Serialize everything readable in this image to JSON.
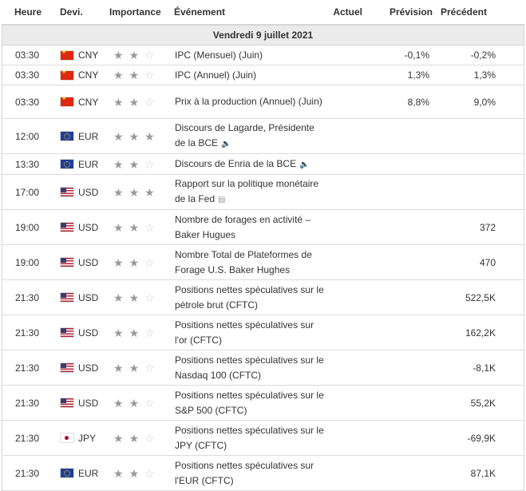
{
  "headers": {
    "time": "Heure",
    "currency": "Devi.",
    "importance": "Importance",
    "event": "Événement",
    "actual": "Actuel",
    "forecast": "Prévision",
    "previous": "Précédent"
  },
  "date_label": "Vendredi 9 juillet 2021",
  "icons": {
    "speaker": "🔈",
    "report": "▤"
  },
  "colors": {
    "header_bg": "#ebebeb",
    "star_on": "#999999",
    "star_off": "#cfcfcf"
  },
  "events": [
    {
      "time": "03:30",
      "flag": "cn",
      "currency": "CNY",
      "stars": 2,
      "event": "IPC (Mensuel) (Juin)",
      "icon": "",
      "actual": "",
      "forecast": "-0,1%",
      "previous": "-0,2%"
    },
    {
      "time": "03:30",
      "flag": "cn",
      "currency": "CNY",
      "stars": 2,
      "event": "IPC (Annuel) (Juin)",
      "icon": "",
      "actual": "",
      "forecast": "1,3%",
      "previous": "1,3%"
    },
    {
      "time": "03:30",
      "flag": "cn",
      "currency": "CNY",
      "stars": 2,
      "event": "Prix à la production (Annuel) (Juin)",
      "icon": "",
      "actual": "",
      "forecast": "8,8%",
      "previous": "9,0%"
    },
    {
      "time": "12:00",
      "flag": "eu",
      "currency": "EUR",
      "stars": 3,
      "event": "Discours de Lagarde, Présidente de la BCE",
      "icon": "speaker-icon",
      "actual": "",
      "forecast": "",
      "previous": ""
    },
    {
      "time": "13:30",
      "flag": "eu",
      "currency": "EUR",
      "stars": 2,
      "event": "Discours de Enria de la BCE",
      "icon": "speaker-icon",
      "actual": "",
      "forecast": "",
      "previous": ""
    },
    {
      "time": "17:00",
      "flag": "us",
      "currency": "USD",
      "stars": 3,
      "event": "Rapport sur la politique monétaire de la Fed",
      "icon": "report-icon",
      "actual": "",
      "forecast": "",
      "previous": ""
    },
    {
      "time": "19:00",
      "flag": "us",
      "currency": "USD",
      "stars": 2,
      "event": "Nombre de forages en activité – Baker Hugues",
      "icon": "",
      "actual": "",
      "forecast": "",
      "previous": "372"
    },
    {
      "time": "19:00",
      "flag": "us",
      "currency": "USD",
      "stars": 2,
      "event": "Nombre Total de Plateformes de Forage U.S. Baker Hughes",
      "icon": "",
      "actual": "",
      "forecast": "",
      "previous": "470"
    },
    {
      "time": "21:30",
      "flag": "us",
      "currency": "USD",
      "stars": 2,
      "event": "Positions nettes spéculatives sur le pétrole brut (CFTC)",
      "icon": "",
      "actual": "",
      "forecast": "",
      "previous": "522,5K"
    },
    {
      "time": "21:30",
      "flag": "us",
      "currency": "USD",
      "stars": 2,
      "event": "Positions nettes spéculatives sur l'or (CFTC)",
      "icon": "",
      "actual": "",
      "forecast": "",
      "previous": "162,2K"
    },
    {
      "time": "21:30",
      "flag": "us",
      "currency": "USD",
      "stars": 2,
      "event": "Positions nettes spéculatives sur le Nasdaq 100 (CFTC)",
      "icon": "",
      "actual": "",
      "forecast": "",
      "previous": "-8,1K"
    },
    {
      "time": "21:30",
      "flag": "us",
      "currency": "USD",
      "stars": 2,
      "event": "Positions nettes spéculatives sur le S&P 500 (CFTC)",
      "icon": "",
      "actual": "",
      "forecast": "",
      "previous": "55,2K"
    },
    {
      "time": "21:30",
      "flag": "jp",
      "currency": "JPY",
      "stars": 2,
      "event": "Positions nettes spéculatives sur le JPY (CFTC)",
      "icon": "",
      "actual": "",
      "forecast": "",
      "previous": "-69,9K"
    },
    {
      "time": "21:30",
      "flag": "eu",
      "currency": "EUR",
      "stars": 2,
      "event": "Positions nettes spéculatives sur l'EUR (CFTC)",
      "icon": "",
      "actual": "",
      "forecast": "",
      "previous": "87,1K"
    }
  ]
}
